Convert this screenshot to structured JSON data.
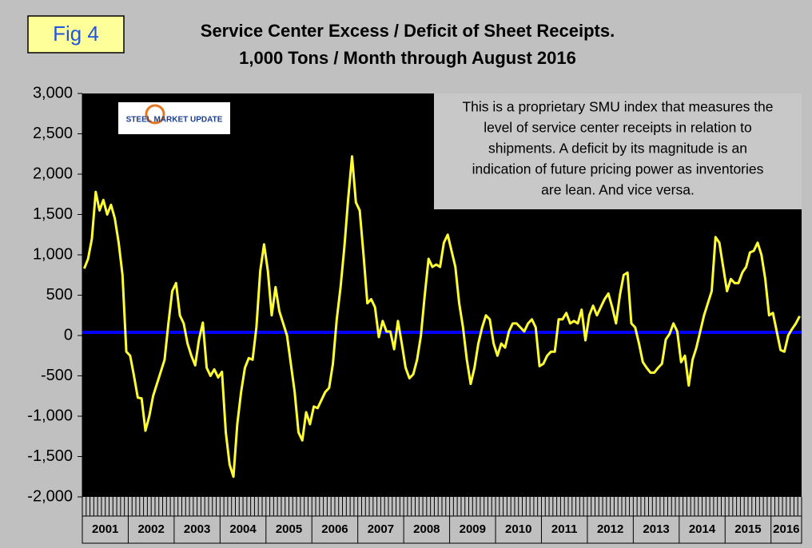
{
  "chart_data": {
    "type": "line",
    "figure_label": "Fig 4",
    "title": [
      "Service Center Excess / Deficit of Sheet Receipts.",
      "1,000 Tons / Month through August 2016"
    ],
    "annotation": [
      "This is a proprietary SMU index that measures the",
      "level of service center receipts in relation to",
      "shipments. A deficit by its magnitude is an",
      "indication of future pricing power as inventories",
      "are lean. And vice versa."
    ],
    "logo": "STEEL MARKET UPDATE",
    "categories": [
      null,
      null,
      null,
      null,
      null,
      "2001",
      null,
      null,
      null,
      null,
      null,
      null,
      null,
      null,
      null,
      null,
      null,
      "2002",
      null,
      null,
      null,
      null,
      null,
      null,
      null,
      null,
      null,
      null,
      null,
      "2003",
      null,
      null,
      null,
      null,
      null,
      null,
      null,
      null,
      null,
      null,
      null,
      "2004",
      null,
      null,
      null,
      null,
      null,
      null,
      null,
      null,
      null,
      null,
      null,
      "2005",
      null,
      null,
      null,
      null,
      null,
      null,
      null,
      null,
      null,
      null,
      null,
      "2006",
      null,
      null,
      null,
      null,
      null,
      null,
      null,
      null,
      null,
      null,
      null,
      "2007",
      null,
      null,
      null,
      null,
      null,
      null,
      null,
      null,
      null,
      null,
      null,
      "2008",
      null,
      null,
      null,
      null,
      null,
      null,
      null,
      null,
      null,
      null,
      null,
      "2009",
      null,
      null,
      null,
      null,
      null,
      null,
      null,
      null,
      null,
      null,
      null,
      "2010",
      null,
      null,
      null,
      null,
      null,
      null,
      null,
      null,
      null,
      null,
      null,
      "2011",
      null,
      null,
      null,
      null,
      null,
      null,
      null,
      null,
      null,
      null,
      null,
      "2012",
      null,
      null,
      null,
      null,
      null,
      null,
      null,
      null,
      null,
      null,
      null,
      "2013",
      null,
      null,
      null,
      null,
      null,
      null,
      null,
      null,
      null,
      null,
      null,
      "2014",
      null,
      null,
      null,
      null,
      null,
      null,
      null,
      null,
      null,
      null,
      null,
      "2015",
      null,
      null,
      null,
      null,
      null,
      null,
      null,
      null,
      null,
      "2016",
      null,
      null,
      null,
      null
    ],
    "series": [
      {
        "color": "#ffff33",
        "values": [
          830,
          950,
          1200,
          1780,
          1550,
          1680,
          1500,
          1620,
          1450,
          1150,
          750,
          -200,
          -250,
          -500,
          -770,
          -780,
          -1180,
          -1000,
          -750,
          -600,
          -450,
          -300,
          150,
          550,
          650,
          250,
          150,
          -100,
          -250,
          -370,
          -50,
          160,
          -400,
          -500,
          -420,
          -520,
          -450,
          -1200,
          -1600,
          -1750,
          -1100,
          -700,
          -400,
          -280,
          -300,
          100,
          800,
          1130,
          800,
          250,
          600,
          300,
          150,
          0,
          -350,
          -700,
          -1200,
          -1300,
          -950,
          -1100,
          -880,
          -900,
          -800,
          -700,
          -650,
          -350,
          200,
          600,
          1100,
          1700,
          2220,
          1650,
          1550,
          1000,
          400,
          450,
          350,
          -20,
          180,
          50,
          50,
          -170,
          180,
          -100,
          -400,
          -530,
          -480,
          -300,
          0,
          500,
          950,
          850,
          880,
          850,
          1150,
          1250,
          1050,
          850,
          400,
          100,
          -300,
          -600,
          -400,
          -100,
          100,
          250,
          200,
          -100,
          -250,
          -100,
          -150,
          50,
          150,
          150,
          100,
          50,
          150,
          200,
          100,
          -380,
          -350,
          -250,
          -200,
          -200,
          200,
          200,
          280,
          150,
          180,
          150,
          320,
          -60,
          250,
          370,
          250,
          350,
          450,
          520,
          350,
          150,
          500,
          750,
          780,
          150,
          100,
          -100,
          -330,
          -400,
          -460,
          -460,
          -400,
          -350,
          -50,
          20,
          150,
          50,
          -330,
          -250,
          -620,
          -300,
          -150,
          50,
          250,
          400,
          550,
          1220,
          1150,
          850,
          550,
          700,
          650,
          650,
          780,
          850,
          1030,
          1050,
          1150,
          1000,
          700,
          250,
          280,
          50,
          -180,
          -200,
          0,
          80,
          150,
          240
        ]
      }
    ],
    "reference_line": {
      "value": 40,
      "color": "#0000ff"
    },
    "ylim": [
      -2000,
      3000
    ],
    "yticks": [
      {
        "value": -2000,
        "label": "-2,000"
      },
      {
        "value": -1500,
        "label": "-1,500"
      },
      {
        "value": -1000,
        "label": "-1,000"
      },
      -500,
      0,
      500,
      {
        "value": 1000,
        "label": "1,000"
      },
      {
        "value": 1500,
        "label": "1,500"
      },
      {
        "value": 2000,
        "label": "2,000"
      },
      {
        "value": 2500,
        "label": "2,500"
      },
      {
        "value": 3000,
        "label": "3,000"
      }
    ],
    "grid": false,
    "plot_background": "#000000"
  }
}
